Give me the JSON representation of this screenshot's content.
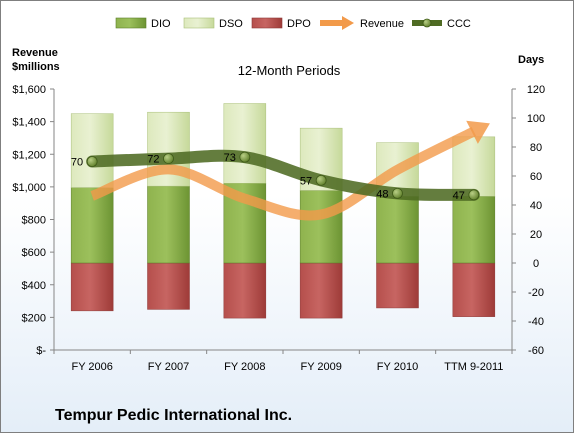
{
  "chart_data": {
    "type": "bar",
    "title": "12-Month Periods",
    "company": "Tempur Pedic International Inc.",
    "categories": [
      "FY 2006",
      "FY 2007",
      "FY 2008",
      "FY 2009",
      "FY 2010",
      "TTM 9-2011"
    ],
    "left_axis": {
      "label_line1": "Revenue",
      "label_line2": "$millions",
      "range": [
        0,
        1600
      ],
      "ticks": [
        0,
        200,
        400,
        600,
        800,
        1000,
        1200,
        1400,
        1600
      ],
      "tick_labels": [
        "$-",
        "$200",
        "$400",
        "$600",
        "$800",
        "$1,000",
        "$1,200",
        "$1,400",
        "$1,600"
      ]
    },
    "right_axis": {
      "label": "Days",
      "range": [
        -60,
        120
      ],
      "ticks": [
        -60,
        -40,
        -20,
        0,
        20,
        40,
        60,
        80,
        100,
        120
      ],
      "tick_labels": [
        "-60",
        "-40",
        "-20",
        "0",
        "20",
        "40",
        "60",
        "80",
        "100",
        "120"
      ]
    },
    "series": [
      {
        "name": "DIO",
        "axis": "right",
        "kind": "stacked-bar",
        "values": [
          52,
          53,
          55,
          50,
          46,
          46
        ],
        "color": "#77a03c"
      },
      {
        "name": "DSO",
        "axis": "right",
        "kind": "stacked-bar",
        "values": [
          51,
          51,
          55,
          43,
          37,
          41
        ],
        "color": "#d4e4ad"
      },
      {
        "name": "DPO",
        "axis": "right",
        "kind": "negative-bar",
        "values": [
          -33,
          -32,
          -38,
          -38,
          -31,
          -37
        ],
        "color": "#b84a47"
      },
      {
        "name": "Revenue",
        "axis": "left",
        "kind": "line",
        "values": [
          945,
          1107,
          928,
          831,
          1105,
          1340
        ],
        "color": "#f29a4a"
      },
      {
        "name": "CCC",
        "axis": "right",
        "kind": "line",
        "values": [
          70,
          72,
          73,
          57,
          48,
          47
        ],
        "labels": [
          "70",
          "72",
          "73",
          "57",
          "48",
          "47"
        ],
        "color": "#4f6b23"
      }
    ],
    "legend": {
      "position": "top"
    },
    "grid": false
  }
}
